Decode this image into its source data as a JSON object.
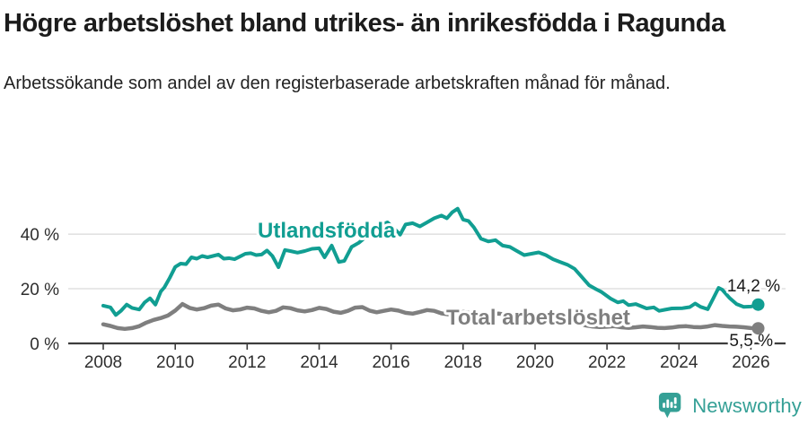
{
  "header": {
    "title": "Högre arbetslöshet bland utrikes- än inrikesfödda i Ragunda",
    "subtitle": "Arbetssökande som andel av den registerbaserade arbetskraften månad för månad."
  },
  "footer": {
    "brand": "Newsworthy",
    "logo_icon": "newsworthy-speech-bubble-bar-chart-icon"
  },
  "colors": {
    "accent_teal": "#119e92",
    "series_gray": "#7f7f7f",
    "logo_teal": "#35a096",
    "grid": "#d9d9d9",
    "axis": "#3d3d3d",
    "tick_text": "#2e2e2e",
    "end_label_text": "#1a1a1a",
    "title_text": "#1c1c1c"
  },
  "chart_data": {
    "type": "line",
    "title": "Högre arbetslöshet bland utrikes- än inrikesfödda i Ragunda",
    "subtitle": "Arbetssökande som andel av den registerbaserade arbetskraften månad för månad.",
    "x_unit": "year (monthly series)",
    "y_unit": "percent of registered labour force",
    "grid": true,
    "legend_position": "inline-series-labels",
    "x_axis": {
      "ticks": [
        2008,
        2010,
        2012,
        2014,
        2016,
        2018,
        2020,
        2022,
        2024,
        2026
      ],
      "range": [
        2007.05,
        2026.95
      ]
    },
    "y_axis": {
      "ticks": [
        {
          "value": 0,
          "label": "0 %"
        },
        {
          "value": 20,
          "label": "20 %"
        },
        {
          "value": 40,
          "label": "40 %"
        }
      ],
      "range": [
        0,
        58
      ]
    },
    "series": [
      {
        "name": "Utlandsfödda",
        "color": "#119e92",
        "end_label": "14,2 %",
        "end_value": 14.2,
        "points": [
          [
            2008.0,
            13.8
          ],
          [
            2008.2,
            13.2
          ],
          [
            2008.35,
            10.4
          ],
          [
            2008.5,
            12.0
          ],
          [
            2008.65,
            14.2
          ],
          [
            2008.8,
            13.0
          ],
          [
            2009.0,
            12.4
          ],
          [
            2009.15,
            15.0
          ],
          [
            2009.3,
            16.5
          ],
          [
            2009.45,
            14.2
          ],
          [
            2009.6,
            19.0
          ],
          [
            2009.7,
            20.5
          ],
          [
            2009.85,
            24.0
          ],
          [
            2010.0,
            28.0
          ],
          [
            2010.15,
            29.2
          ],
          [
            2010.3,
            29.0
          ],
          [
            2010.45,
            31.5
          ],
          [
            2010.6,
            31.0
          ],
          [
            2010.75,
            32.0
          ],
          [
            2010.9,
            31.5
          ],
          [
            2011.05,
            32.0
          ],
          [
            2011.2,
            32.5
          ],
          [
            2011.35,
            31.0
          ],
          [
            2011.5,
            31.2
          ],
          [
            2011.65,
            30.8
          ],
          [
            2011.8,
            31.8
          ],
          [
            2011.95,
            32.8
          ],
          [
            2012.1,
            33.0
          ],
          [
            2012.25,
            32.3
          ],
          [
            2012.4,
            32.5
          ],
          [
            2012.55,
            34.0
          ],
          [
            2012.7,
            32.0
          ],
          [
            2012.87,
            27.9
          ],
          [
            2013.05,
            34.2
          ],
          [
            2013.2,
            33.8
          ],
          [
            2013.4,
            33.2
          ],
          [
            2013.6,
            33.8
          ],
          [
            2013.8,
            34.6
          ],
          [
            2014.0,
            34.8
          ],
          [
            2014.15,
            31.5
          ],
          [
            2014.35,
            35.8
          ],
          [
            2014.55,
            29.8
          ],
          [
            2014.7,
            30.2
          ],
          [
            2014.9,
            35.3
          ],
          [
            2015.1,
            36.8
          ],
          [
            2015.3,
            39.0
          ],
          [
            2015.5,
            41.5
          ],
          [
            2015.7,
            43.2
          ],
          [
            2015.9,
            44.3
          ],
          [
            2016.1,
            41.8
          ],
          [
            2016.25,
            39.8
          ],
          [
            2016.4,
            43.5
          ],
          [
            2016.6,
            44.0
          ],
          [
            2016.8,
            42.8
          ],
          [
            2017.0,
            44.3
          ],
          [
            2017.2,
            45.8
          ],
          [
            2017.4,
            46.8
          ],
          [
            2017.55,
            45.8
          ],
          [
            2017.7,
            48.0
          ],
          [
            2017.85,
            49.3
          ],
          [
            2018.0,
            45.3
          ],
          [
            2018.15,
            44.8
          ],
          [
            2018.3,
            42.5
          ],
          [
            2018.5,
            38.3
          ],
          [
            2018.7,
            37.3
          ],
          [
            2018.9,
            37.8
          ],
          [
            2019.1,
            35.8
          ],
          [
            2019.3,
            35.3
          ],
          [
            2019.5,
            33.8
          ],
          [
            2019.7,
            32.3
          ],
          [
            2019.9,
            32.8
          ],
          [
            2020.1,
            33.3
          ],
          [
            2020.3,
            32.3
          ],
          [
            2020.5,
            30.8
          ],
          [
            2020.7,
            29.8
          ],
          [
            2020.9,
            28.8
          ],
          [
            2021.1,
            27.3
          ],
          [
            2021.3,
            24.3
          ],
          [
            2021.5,
            21.3
          ],
          [
            2021.7,
            19.8
          ],
          [
            2021.85,
            18.8
          ],
          [
            2022.1,
            16.4
          ],
          [
            2022.3,
            15.0
          ],
          [
            2022.45,
            15.5
          ],
          [
            2022.6,
            14.0
          ],
          [
            2022.8,
            14.4
          ],
          [
            2023.1,
            12.8
          ],
          [
            2023.3,
            13.2
          ],
          [
            2023.45,
            11.9
          ],
          [
            2023.6,
            12.3
          ],
          [
            2023.8,
            12.8
          ],
          [
            2024.1,
            12.9
          ],
          [
            2024.3,
            13.3
          ],
          [
            2024.45,
            14.6
          ],
          [
            2024.6,
            13.4
          ],
          [
            2024.8,
            12.5
          ],
          [
            2024.95,
            16.4
          ],
          [
            2025.1,
            20.3
          ],
          [
            2025.2,
            19.7
          ],
          [
            2025.4,
            16.7
          ],
          [
            2025.6,
            14.4
          ],
          [
            2025.8,
            13.4
          ],
          [
            2026.0,
            13.5
          ],
          [
            2026.2,
            14.2
          ]
        ]
      },
      {
        "name": "Total arbetslöshet",
        "color": "#7f7f7f",
        "end_label": "5,5 %",
        "end_value": 5.5,
        "points": [
          [
            2008.0,
            7.0
          ],
          [
            2008.2,
            6.4
          ],
          [
            2008.4,
            5.6
          ],
          [
            2008.6,
            5.3
          ],
          [
            2008.8,
            5.6
          ],
          [
            2009.0,
            6.3
          ],
          [
            2009.2,
            7.6
          ],
          [
            2009.4,
            8.6
          ],
          [
            2009.6,
            9.3
          ],
          [
            2009.8,
            10.2
          ],
          [
            2010.0,
            12.0
          ],
          [
            2010.2,
            14.4
          ],
          [
            2010.4,
            13.0
          ],
          [
            2010.6,
            12.4
          ],
          [
            2010.8,
            12.9
          ],
          [
            2011.0,
            13.8
          ],
          [
            2011.2,
            14.2
          ],
          [
            2011.4,
            12.8
          ],
          [
            2011.6,
            12.1
          ],
          [
            2011.8,
            12.4
          ],
          [
            2012.0,
            13.1
          ],
          [
            2012.2,
            12.8
          ],
          [
            2012.4,
            11.9
          ],
          [
            2012.6,
            11.4
          ],
          [
            2012.8,
            11.9
          ],
          [
            2013.0,
            13.2
          ],
          [
            2013.2,
            12.9
          ],
          [
            2013.4,
            12.1
          ],
          [
            2013.6,
            11.7
          ],
          [
            2013.8,
            12.2
          ],
          [
            2014.0,
            13.0
          ],
          [
            2014.2,
            12.6
          ],
          [
            2014.4,
            11.6
          ],
          [
            2014.6,
            11.2
          ],
          [
            2014.8,
            11.9
          ],
          [
            2015.0,
            13.1
          ],
          [
            2015.2,
            13.3
          ],
          [
            2015.4,
            12.0
          ],
          [
            2015.6,
            11.4
          ],
          [
            2015.8,
            11.9
          ],
          [
            2016.0,
            12.4
          ],
          [
            2016.2,
            12.0
          ],
          [
            2016.4,
            11.2
          ],
          [
            2016.6,
            10.9
          ],
          [
            2016.8,
            11.5
          ],
          [
            2017.0,
            12.2
          ],
          [
            2017.2,
            11.9
          ],
          [
            2017.4,
            11.0
          ],
          [
            2017.6,
            10.6
          ],
          [
            2017.8,
            10.9
          ],
          [
            2018.0,
            11.5
          ],
          [
            2018.2,
            11.1
          ],
          [
            2018.4,
            10.6
          ],
          [
            2018.6,
            10.3
          ],
          [
            2018.8,
            10.7
          ],
          [
            2019.0,
            10.9
          ],
          [
            2019.2,
            10.5
          ],
          [
            2019.4,
            10.0
          ],
          [
            2019.6,
            9.8
          ],
          [
            2019.8,
            10.1
          ],
          [
            2020.0,
            10.4
          ],
          [
            2020.2,
            11.0
          ],
          [
            2020.4,
            10.8
          ],
          [
            2020.6,
            10.2
          ],
          [
            2020.8,
            9.6
          ],
          [
            2021.0,
            8.9
          ],
          [
            2021.2,
            7.4
          ],
          [
            2021.4,
            6.6
          ],
          [
            2021.6,
            6.2
          ],
          [
            2021.8,
            6.0
          ],
          [
            2022.0,
            6.1
          ],
          [
            2022.2,
            6.3
          ],
          [
            2022.4,
            5.9
          ],
          [
            2022.6,
            5.7
          ],
          [
            2022.8,
            5.9
          ],
          [
            2023.0,
            6.2
          ],
          [
            2023.2,
            6.0
          ],
          [
            2023.4,
            5.7
          ],
          [
            2023.6,
            5.6
          ],
          [
            2023.8,
            5.8
          ],
          [
            2024.0,
            6.2
          ],
          [
            2024.2,
            6.3
          ],
          [
            2024.4,
            6.0
          ],
          [
            2024.6,
            5.9
          ],
          [
            2024.8,
            6.2
          ],
          [
            2025.0,
            6.7
          ],
          [
            2025.2,
            6.4
          ],
          [
            2025.4,
            6.2
          ],
          [
            2025.6,
            6.1
          ],
          [
            2025.8,
            5.9
          ],
          [
            2026.0,
            5.6
          ],
          [
            2026.2,
            5.5
          ]
        ]
      }
    ]
  }
}
